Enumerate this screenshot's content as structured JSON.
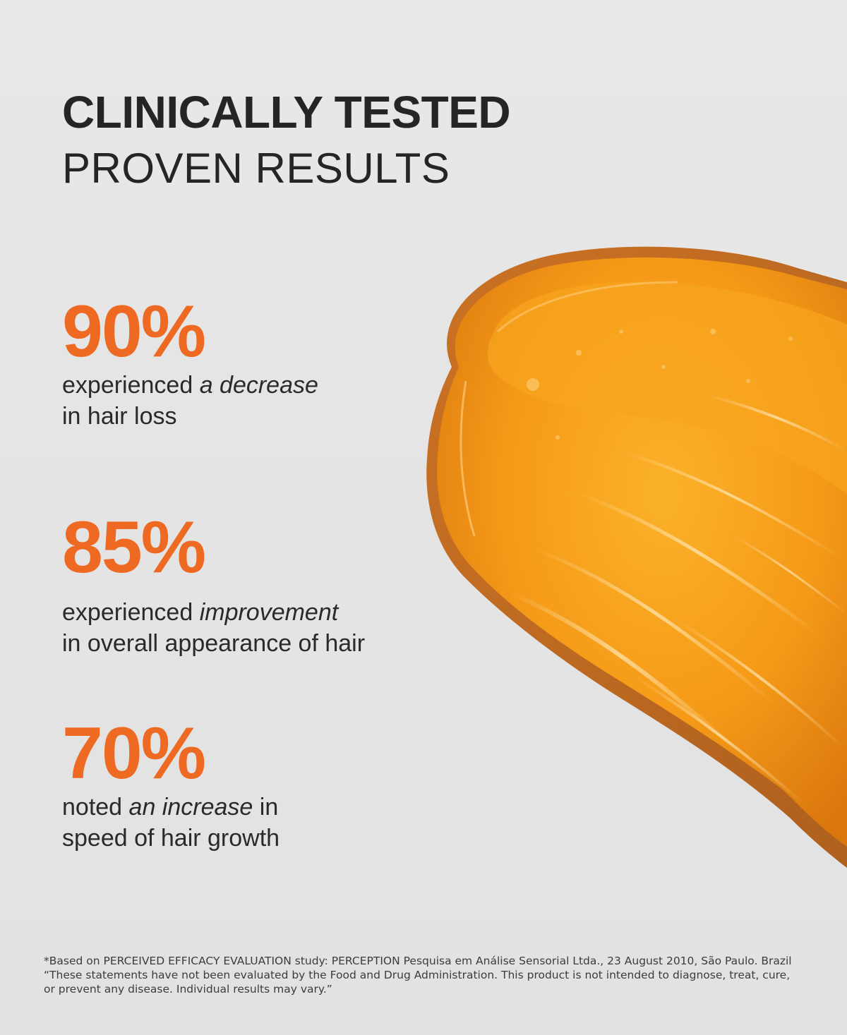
{
  "headline": {
    "line1": "CLINICALLY TESTED",
    "line2": "PROVEN RESULTS"
  },
  "stats": [
    {
      "value": "90%",
      "before": "experienced ",
      "emphasis": "a decrease",
      "after": "",
      "line2": "in hair loss"
    },
    {
      "value": "85%",
      "before": "experienced ",
      "emphasis": "improvement",
      "after": "",
      "line2": "in overall appearance of hair"
    },
    {
      "value": "70%",
      "before": "noted ",
      "emphasis": "an increase",
      "after": " in",
      "line2": "speed of hair growth"
    }
  ],
  "footnote": {
    "line1": "*Based on PERCEIVED EFFICACY EVALUATION study: PERCEPTION Pesquisa em Análise Sensorial Ltda., 23 August 2010, São Paulo. Brazil",
    "line2": "“These statements have not been evaluated by the Food and Drug Administration. This product is not intended to diagnose, treat, cure,",
    "line3": "or prevent any disease. Individual results may vary.”"
  },
  "colors": {
    "accent": "#ee6a22",
    "text": "#2b2b2b",
    "background": "#e8e7e7",
    "serum": "#f39a1c"
  }
}
